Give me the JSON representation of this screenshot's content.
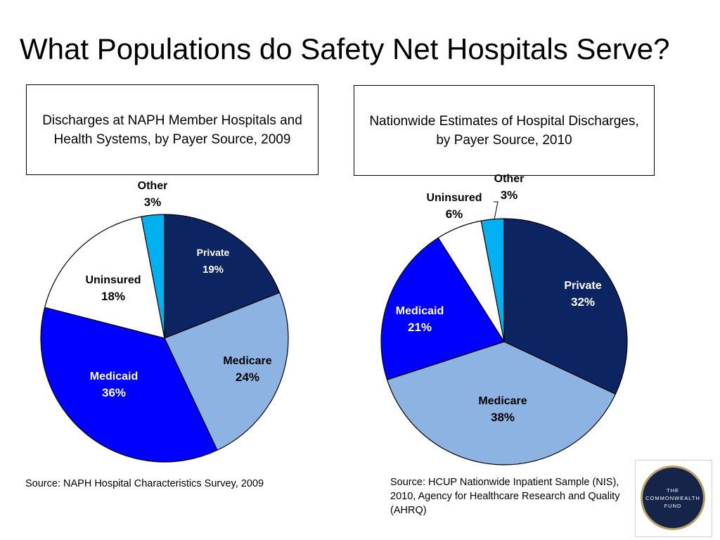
{
  "slide": {
    "title": "What Populations do Safety Net Hospitals Serve?"
  },
  "panels": {
    "left_caption": "Discharges at NAPH Member Hospitals and Health Systems, by Payer Source, 2009",
    "right_caption": "Nationwide Estimates of Hospital Discharges, by Payer Source, 2010",
    "left_source": "Source: NAPH Hospital Characteristics Survey, 2009",
    "right_source": "Source:  HCUP Nationwide Inpatient Sample (NIS), 2010, Agency for Healthcare Research and Quality (AHRQ)"
  },
  "logo": {
    "line1": "THE",
    "line2": "COMMONWEALTH",
    "line3": "FUND"
  },
  "colors": {
    "private": "#0c2461",
    "medicare": "#8db3e2",
    "medicaid": "#0000ff",
    "uninsured": "#ffffff",
    "other": "#00b0f0"
  },
  "chart_data": [
    {
      "type": "pie",
      "title": "Discharges at NAPH Member Hospitals and Health Systems, by Payer Source, 2009",
      "slices": [
        {
          "label": "Private",
          "value": 19,
          "display": "19%"
        },
        {
          "label": "Medicare",
          "value": 24,
          "display": "24%"
        },
        {
          "label": "Medicaid",
          "value": 36,
          "display": "36%"
        },
        {
          "label": "Uninsured",
          "value": 18,
          "display": "18%"
        },
        {
          "label": "Other",
          "value": 3,
          "display": "3%"
        }
      ]
    },
    {
      "type": "pie",
      "title": "Nationwide Estimates of Hospital Discharges, by Payer Source, 2010",
      "slices": [
        {
          "label": "Private",
          "value": 32,
          "display": "32%"
        },
        {
          "label": "Medicare",
          "value": 38,
          "display": "38%"
        },
        {
          "label": "Medicaid",
          "value": 21,
          "display": "21%"
        },
        {
          "label": "Uninsured",
          "value": 6,
          "display": "6%"
        },
        {
          "label": "Other",
          "value": 3,
          "display": "3%"
        }
      ]
    }
  ]
}
